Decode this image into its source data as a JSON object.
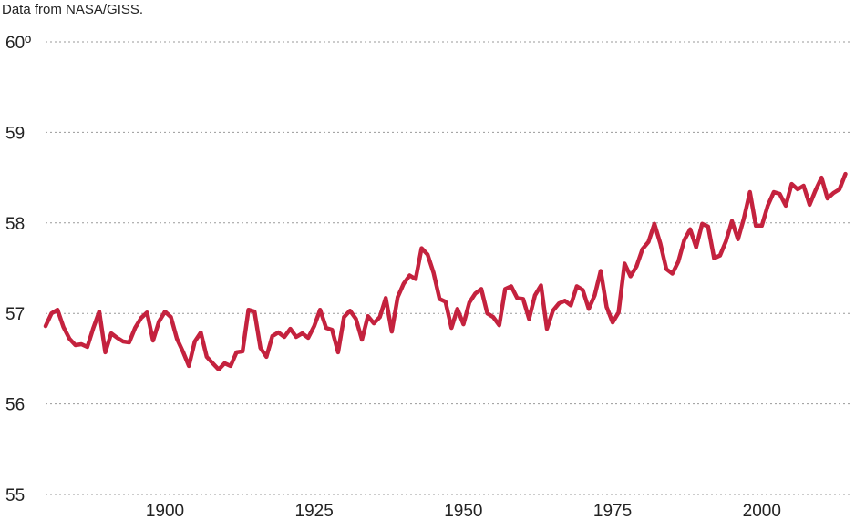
{
  "source_note": "Data from NASA/GISS.",
  "chart_data": {
    "type": "line",
    "title": "",
    "xlabel": "",
    "ylabel": "",
    "xlim": [
      1880,
      2015
    ],
    "ylim": [
      55,
      60
    ],
    "y_ticks": [
      55,
      56,
      57,
      58,
      59,
      60
    ],
    "y_tick_labels": [
      "55",
      "56",
      "57",
      "58",
      "59",
      "60º"
    ],
    "x_ticks": [
      1900,
      1925,
      1950,
      1975,
      2000
    ],
    "x_tick_labels": [
      "1900",
      "1925",
      "1950",
      "1975",
      "2000"
    ],
    "grid": "horizontal dotted",
    "line_color": "#c4223e",
    "series": [
      {
        "x": [
          1880,
          1881,
          1882,
          1883,
          1884,
          1885,
          1886,
          1887,
          1888,
          1889,
          1890,
          1891,
          1892,
          1893,
          1894,
          1895,
          1896,
          1897,
          1898,
          1899,
          1900,
          1901,
          1902,
          1903,
          1904,
          1905,
          1906,
          1907,
          1908,
          1909,
          1910,
          1911,
          1912,
          1913,
          1914,
          1915,
          1916,
          1917,
          1918,
          1919,
          1920,
          1921,
          1922,
          1923,
          1924,
          1925,
          1926,
          1927,
          1928,
          1929,
          1930,
          1931,
          1932,
          1933,
          1934,
          1935,
          1936,
          1937,
          1938,
          1939,
          1940,
          1941,
          1942,
          1943,
          1944,
          1945,
          1946,
          1947,
          1948,
          1949,
          1950,
          1951,
          1952,
          1953,
          1954,
          1955,
          1956,
          1957,
          1958,
          1959,
          1960,
          1961,
          1962,
          1963,
          1964,
          1965,
          1966,
          1967,
          1968,
          1969,
          1970,
          1971,
          1972,
          1973,
          1974,
          1975,
          1976,
          1977,
          1978,
          1979,
          1980,
          1981,
          1982,
          1983,
          1984,
          1985,
          1986,
          1987,
          1988,
          1989,
          1990,
          1991,
          1992,
          1993,
          1994,
          1995,
          1996,
          1997,
          1998,
          1999,
          2000,
          2001,
          2002,
          2003,
          2004,
          2005,
          2006,
          2007,
          2008,
          2009,
          2010,
          2011,
          2012,
          2013,
          2014
        ],
        "values": [
          56.86,
          57.0,
          57.04,
          56.85,
          56.72,
          56.65,
          56.66,
          56.63,
          56.84,
          57.02,
          56.57,
          56.78,
          56.73,
          56.69,
          56.68,
          56.84,
          56.95,
          57.01,
          56.7,
          56.91,
          57.02,
          56.96,
          56.72,
          56.58,
          56.42,
          56.69,
          56.79,
          56.52,
          56.45,
          56.38,
          56.45,
          56.42,
          56.57,
          56.58,
          57.04,
          57.02,
          56.62,
          56.52,
          56.75,
          56.79,
          56.74,
          56.83,
          56.74,
          56.78,
          56.73,
          56.86,
          57.04,
          56.84,
          56.82,
          56.57,
          56.96,
          57.03,
          56.94,
          56.71,
          56.97,
          56.89,
          56.96,
          57.17,
          56.8,
          57.18,
          57.33,
          57.42,
          57.38,
          57.72,
          57.65,
          57.45,
          57.16,
          57.13,
          56.84,
          57.05,
          56.88,
          57.12,
          57.22,
          57.27,
          57.0,
          56.96,
          56.87,
          57.27,
          57.3,
          57.17,
          57.16,
          56.94,
          57.2,
          57.31,
          56.83,
          57.03,
          57.11,
          57.14,
          57.09,
          57.3,
          57.26,
          57.05,
          57.2,
          57.47,
          57.07,
          56.9,
          57.01,
          57.55,
          57.41,
          57.52,
          57.71,
          57.79,
          57.99,
          57.77,
          57.49,
          57.44,
          57.57,
          57.81,
          57.93,
          57.73,
          57.99,
          57.96,
          57.61,
          57.64,
          57.8,
          58.02,
          57.82,
          58.05,
          58.34,
          57.97,
          57.97,
          58.19,
          58.34,
          58.32,
          58.19,
          58.43,
          58.37,
          58.41,
          58.2,
          58.36,
          58.5,
          58.27,
          58.33,
          58.37,
          58.54
        ]
      }
    ]
  }
}
